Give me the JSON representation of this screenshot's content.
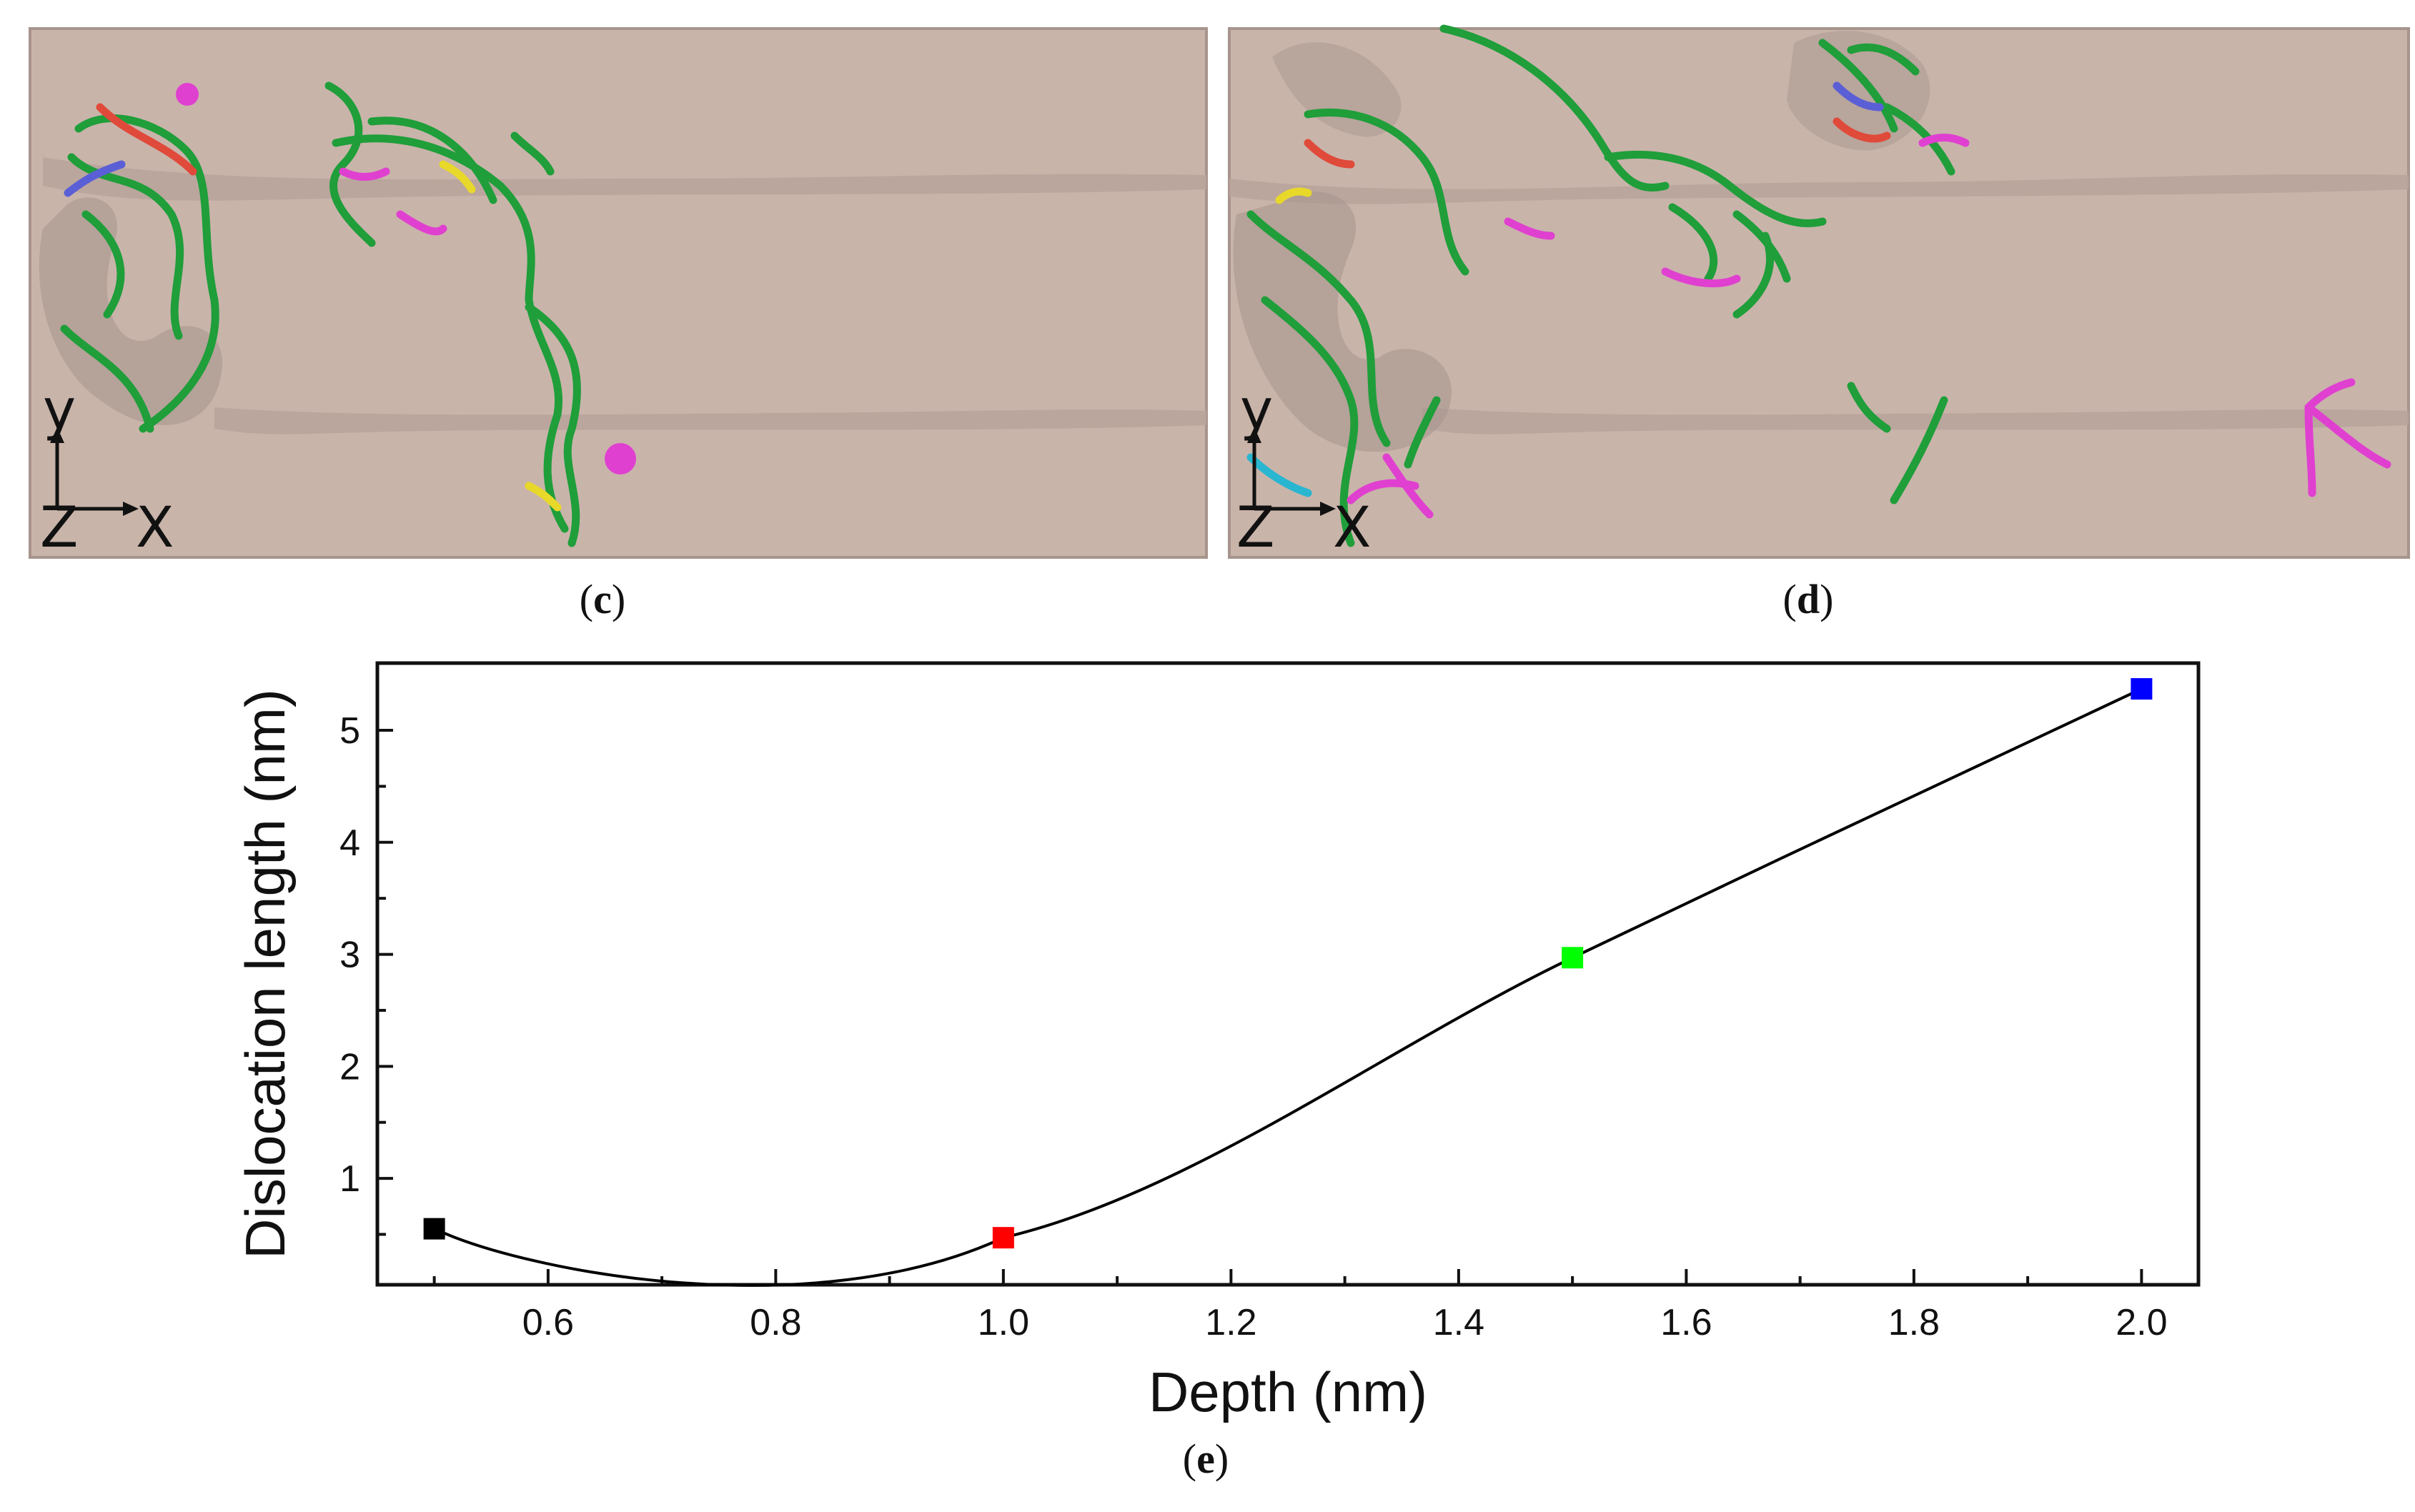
{
  "panels": [
    {
      "id": "c",
      "caption": "c",
      "axes_labels": {
        "y": "y",
        "z": "Z",
        "x": "X"
      }
    },
    {
      "id": "d",
      "caption": "d",
      "axes_labels": {
        "y": "y",
        "z": "Z",
        "x": "X"
      }
    }
  ],
  "colors": {
    "slab": "#c9b4aa",
    "slab_edge": "#a7948c",
    "groove": "#b09d95",
    "dislocation_green": "#1f9e3a",
    "dislocation_magenta": "#e040d0",
    "dislocation_red": "#e04a3a",
    "dislocation_blue": "#5b5fd6",
    "dislocation_yellow": "#e8d82a",
    "dislocation_cyan": "#29b6d0"
  },
  "chart_caption": "e",
  "chart_data": {
    "type": "line",
    "xlabel": "Depth (nm)",
    "ylabel": "Dislocation length (nm)",
    "xlim": [
      0.45,
      2.05
    ],
    "ylim": [
      0.05,
      5.6
    ],
    "x_ticks": [
      0.6,
      0.8,
      1.0,
      1.2,
      1.4,
      1.6,
      1.8,
      2.0
    ],
    "x_tick_labels": [
      "0.6",
      "0.8",
      "1.0",
      "1.2",
      "1.4",
      "1.6",
      "1.8",
      "2.0"
    ],
    "y_ticks": [
      1,
      2,
      3,
      4,
      5
    ],
    "y_tick_labels": [
      "1",
      "2",
      "3",
      "4",
      "5"
    ],
    "points": [
      {
        "x": 0.5,
        "y": 0.55,
        "color": "#000000"
      },
      {
        "x": 1.0,
        "y": 0.47,
        "color": "#ff0000"
      },
      {
        "x": 1.5,
        "y": 2.97,
        "color": "#00ff00"
      },
      {
        "x": 2.0,
        "y": 5.37,
        "color": "#0000ff"
      }
    ],
    "grid": false,
    "legend": "none"
  }
}
